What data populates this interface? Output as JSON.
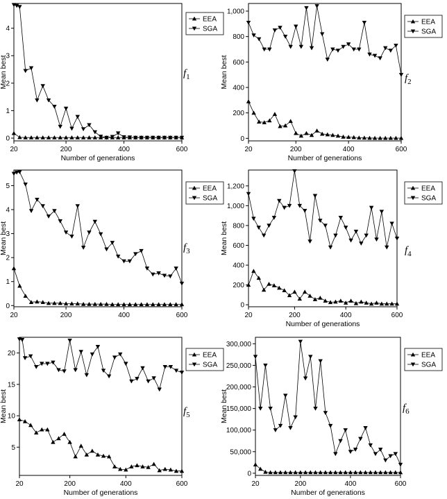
{
  "chart_data": [
    {
      "type": "line",
      "panel_label": "f",
      "panel_index": "1",
      "xlabel": "Number of generations",
      "ylabel": "Mean best",
      "xlim": [
        20,
        600
      ],
      "ylim": [
        -0.1,
        4.9
      ],
      "x_ticks": [
        "20",
        "200",
        "400",
        "600"
      ],
      "y_ticks": [
        "0",
        "1",
        "2",
        "3",
        "4"
      ],
      "legend": {
        "position": "right",
        "entries": [
          "EEA",
          "SGA"
        ]
      },
      "series": [
        {
          "name": "EEA",
          "marker": "triangle-up",
          "x": [
            20,
            40,
            60,
            80,
            100,
            120,
            140,
            160,
            180,
            200,
            220,
            240,
            260,
            280,
            300,
            320,
            340,
            360,
            380,
            400,
            420,
            440,
            460,
            480,
            500,
            520,
            540,
            560,
            580,
            600
          ],
          "values": [
            0.18,
            0.03,
            0.02,
            0.02,
            0.02,
            0.02,
            0.02,
            0.02,
            0.02,
            0.02,
            0.02,
            0.02,
            0.02,
            0.02,
            0.02,
            0.02,
            0.02,
            0.02,
            0.02,
            0.02,
            0.02,
            0.02,
            0.02,
            0.02,
            0.02,
            0.02,
            0.02,
            0.02,
            0.02,
            0.02
          ]
        },
        {
          "name": "SGA",
          "marker": "triangle-down",
          "x": [
            20,
            30,
            40,
            60,
            80,
            100,
            120,
            140,
            160,
            180,
            200,
            220,
            240,
            260,
            280,
            300,
            320,
            340,
            360,
            380,
            400,
            420,
            440,
            460,
            480,
            500,
            520,
            540,
            560,
            580,
            600
          ],
          "values": [
            4.85,
            4.82,
            4.78,
            2.45,
            2.55,
            1.38,
            1.9,
            1.38,
            1.15,
            0.42,
            1.08,
            0.35,
            0.78,
            0.33,
            0.48,
            0.22,
            0.06,
            0.02,
            0.05,
            0.18,
            0.04,
            0.03,
            0.02,
            0.02,
            0.02,
            0.02,
            0.02,
            0.02,
            0.02,
            0.02,
            0.02
          ]
        }
      ]
    },
    {
      "type": "line",
      "panel_label": "f",
      "panel_index": "2",
      "xlabel": "Number of generations",
      "ylabel": "Mean best",
      "xlim": [
        20,
        600
      ],
      "ylim": [
        -20,
        1060
      ],
      "x_ticks": [
        "20",
        "200",
        "400",
        "600"
      ],
      "y_ticks": [
        "0",
        "200",
        "400",
        "600",
        "800",
        "1,000"
      ],
      "legend": {
        "position": "right",
        "entries": [
          "EEA",
          "SGA"
        ]
      },
      "series": [
        {
          "name": "EEA",
          "marker": "triangle-up",
          "x": [
            20,
            40,
            60,
            80,
            100,
            120,
            140,
            160,
            180,
            200,
            220,
            240,
            260,
            280,
            300,
            320,
            340,
            360,
            380,
            400,
            420,
            440,
            460,
            480,
            500,
            520,
            540,
            560,
            580,
            600
          ],
          "values": [
            290,
            200,
            130,
            125,
            140,
            190,
            95,
            100,
            135,
            40,
            20,
            40,
            25,
            60,
            35,
            30,
            25,
            20,
            12,
            10,
            8,
            5,
            4,
            3,
            2,
            2,
            2,
            2,
            2,
            2
          ]
        },
        {
          "name": "SGA",
          "marker": "triangle-down",
          "x": [
            20,
            40,
            60,
            80,
            100,
            120,
            140,
            160,
            180,
            200,
            220,
            240,
            260,
            280,
            300,
            320,
            340,
            360,
            380,
            400,
            420,
            440,
            460,
            480,
            500,
            520,
            540,
            560,
            580,
            600
          ],
          "values": [
            910,
            810,
            780,
            700,
            700,
            850,
            870,
            800,
            720,
            880,
            720,
            1025,
            710,
            1040,
            820,
            620,
            700,
            690,
            720,
            740,
            700,
            700,
            910,
            660,
            650,
            630,
            710,
            690,
            730,
            500
          ]
        }
      ]
    },
    {
      "type": "line",
      "panel_label": "f",
      "panel_index": "3",
      "xlabel": "",
      "ylabel": "Mean best",
      "xlim": [
        20,
        600
      ],
      "ylim": [
        -0.05,
        5.65
      ],
      "x_ticks": [
        "20",
        "200",
        "400",
        "600"
      ],
      "y_ticks": [
        "0",
        "1",
        "2",
        "3",
        "4",
        "5"
      ],
      "legend": {
        "position": "right",
        "entries": [
          "EEA",
          "SGA"
        ]
      },
      "series": [
        {
          "name": "EEA",
          "marker": "triangle-up",
          "x": [
            20,
            40,
            60,
            80,
            100,
            120,
            140,
            160,
            180,
            200,
            220,
            240,
            260,
            280,
            300,
            320,
            340,
            360,
            380,
            400,
            420,
            440,
            460,
            480,
            500,
            520,
            540,
            560,
            580,
            600
          ],
          "values": [
            1.55,
            0.82,
            0.4,
            0.14,
            0.16,
            0.14,
            0.1,
            0.1,
            0.1,
            0.08,
            0.08,
            0.08,
            0.06,
            0.06,
            0.06,
            0.06,
            0.06,
            0.05,
            0.05,
            0.05,
            0.05,
            0.05,
            0.05,
            0.05,
            0.05,
            0.05,
            0.05,
            0.05,
            0.05,
            0.05
          ]
        },
        {
          "name": "SGA",
          "marker": "triangle-down",
          "x": [
            20,
            30,
            40,
            60,
            80,
            100,
            120,
            140,
            160,
            180,
            200,
            220,
            240,
            260,
            280,
            300,
            320,
            340,
            360,
            380,
            400,
            420,
            440,
            460,
            480,
            500,
            520,
            540,
            560,
            580,
            600
          ],
          "values": [
            5.5,
            5.55,
            5.57,
            5.05,
            3.95,
            4.42,
            4.15,
            3.72,
            3.95,
            3.52,
            3.05,
            2.88,
            4.15,
            2.42,
            3.05,
            3.5,
            2.98,
            2.35,
            2.62,
            2.05,
            1.85,
            1.85,
            2.15,
            2.28,
            1.55,
            1.3,
            1.35,
            1.25,
            1.22,
            1.55,
            0.92
          ]
        }
      ]
    },
    {
      "type": "line",
      "panel_label": "f",
      "panel_index": "4",
      "xlabel": "Number of generations",
      "ylabel": "Mean best",
      "xlim": [
        20,
        600
      ],
      "ylim": [
        -20,
        1360
      ],
      "x_ticks": [
        "20",
        "200",
        "400",
        "600"
      ],
      "y_ticks": [
        "0",
        "200",
        "400",
        "600",
        "800",
        "1,000",
        "1,200"
      ],
      "legend": {
        "position": "right",
        "entries": [
          "EEA",
          "SGA"
        ]
      },
      "series": [
        {
          "name": "EEA",
          "marker": "triangle-up",
          "x": [
            20,
            40,
            60,
            80,
            100,
            120,
            140,
            160,
            180,
            200,
            220,
            240,
            260,
            280,
            300,
            320,
            340,
            360,
            380,
            400,
            420,
            440,
            460,
            480,
            500,
            520,
            540,
            560,
            580,
            600
          ],
          "values": [
            200,
            340,
            270,
            150,
            210,
            195,
            170,
            145,
            95,
            130,
            60,
            130,
            90,
            55,
            70,
            40,
            25,
            30,
            40,
            20,
            40,
            15,
            30,
            20,
            10,
            20,
            10,
            10,
            10,
            10
          ]
        },
        {
          "name": "SGA",
          "marker": "triangle-down",
          "x": [
            20,
            40,
            60,
            80,
            100,
            120,
            140,
            160,
            180,
            200,
            220,
            240,
            260,
            280,
            300,
            320,
            340,
            360,
            380,
            400,
            420,
            440,
            460,
            480,
            500,
            520,
            540,
            560,
            580,
            600
          ],
          "values": [
            1120,
            870,
            780,
            700,
            800,
            880,
            1050,
            980,
            1000,
            1350,
            1000,
            950,
            640,
            1100,
            850,
            800,
            580,
            700,
            880,
            780,
            650,
            740,
            620,
            700,
            980,
            660,
            940,
            580,
            820,
            670
          ]
        }
      ]
    },
    {
      "type": "line",
      "panel_label": "f",
      "panel_index": "5",
      "xlabel": "Number of generations",
      "ylabel": "Mean best",
      "xlim": [
        20,
        600
      ],
      "ylim": [
        0.5,
        22.5
      ],
      "x_ticks": [
        "20",
        "200",
        "400",
        "600"
      ],
      "y_ticks": [
        "5",
        "10",
        "15",
        "20"
      ],
      "legend": {
        "position": "right",
        "entries": [
          "EEA",
          "SGA"
        ]
      },
      "series": [
        {
          "name": "EEA",
          "marker": "triangle-up",
          "x": [
            20,
            40,
            60,
            80,
            100,
            120,
            140,
            160,
            180,
            200,
            220,
            240,
            260,
            280,
            300,
            320,
            340,
            360,
            380,
            400,
            420,
            440,
            460,
            480,
            500,
            520,
            540,
            560,
            580,
            600
          ],
          "values": [
            9.4,
            9.1,
            8.5,
            7.3,
            7.8,
            7.8,
            5.8,
            6.4,
            7.1,
            5.8,
            3.5,
            5.2,
            3.8,
            4.4,
            3.8,
            3.6,
            3.5,
            1.9,
            1.5,
            1.4,
            1.9,
            2.1,
            1.9,
            1.8,
            2.3,
            1.3,
            1.5,
            1.4,
            1.2,
            1.2
          ]
        },
        {
          "name": "SGA",
          "marker": "triangle-down",
          "x": [
            20,
            30,
            40,
            60,
            80,
            100,
            120,
            140,
            160,
            180,
            200,
            220,
            240,
            260,
            280,
            300,
            320,
            340,
            360,
            380,
            400,
            420,
            440,
            460,
            480,
            500,
            520,
            540,
            560,
            580,
            600
          ],
          "values": [
            22.2,
            22.1,
            19.2,
            19.5,
            17.8,
            18.3,
            18.3,
            18.5,
            17.3,
            17.1,
            22.0,
            17.3,
            20.2,
            16.5,
            19.8,
            21.0,
            17.2,
            16.3,
            19.3,
            19.8,
            18.3,
            15.5,
            15.9,
            17.6,
            15.5,
            16.0,
            14.2,
            17.8,
            17.8,
            17.2,
            16.9
          ]
        }
      ]
    },
    {
      "type": "line",
      "panel_label": "f",
      "panel_index": "6",
      "xlabel": "Number of generations",
      "ylabel": "Mean best",
      "xlim": [
        20,
        600
      ],
      "ylim": [
        -5000,
        315000
      ],
      "x_ticks": [
        "20",
        "200",
        "400",
        "600"
      ],
      "y_ticks": [
        "0",
        "50,000",
        "100,000",
        "150,000",
        "200,000",
        "250,000",
        "300,000"
      ],
      "legend": {
        "position": "right",
        "entries": [
          "EEA",
          "SGA"
        ]
      },
      "series": [
        {
          "name": "EEA",
          "marker": "triangle-up",
          "x": [
            20,
            40,
            60,
            80,
            100,
            120,
            140,
            160,
            180,
            200,
            220,
            240,
            260,
            280,
            300,
            320,
            340,
            360,
            380,
            400,
            420,
            440,
            460,
            480,
            500,
            520,
            540,
            560,
            580,
            600
          ],
          "values": [
            20000,
            10000,
            3000,
            2000,
            2000,
            2000,
            2000,
            2000,
            2000,
            2000,
            2000,
            2000,
            2000,
            2000,
            2000,
            2000,
            2000,
            2000,
            2000,
            2000,
            2000,
            2000,
            2000,
            2000,
            2000,
            2000,
            2000,
            2000,
            2000,
            2000
          ]
        },
        {
          "name": "SGA",
          "marker": "triangle-down",
          "x": [
            20,
            40,
            60,
            80,
            100,
            120,
            140,
            160,
            180,
            200,
            220,
            240,
            260,
            280,
            300,
            320,
            340,
            360,
            380,
            400,
            420,
            440,
            460,
            480,
            500,
            520,
            540,
            560,
            580,
            600
          ],
          "values": [
            270000,
            150000,
            250000,
            150000,
            100000,
            110000,
            180000,
            105000,
            130000,
            305000,
            220000,
            270000,
            150000,
            260000,
            140000,
            110000,
            45000,
            75000,
            100000,
            50000,
            55000,
            80000,
            105000,
            65000,
            45000,
            55000,
            30000,
            40000,
            45000,
            20000
          ]
        }
      ]
    }
  ]
}
